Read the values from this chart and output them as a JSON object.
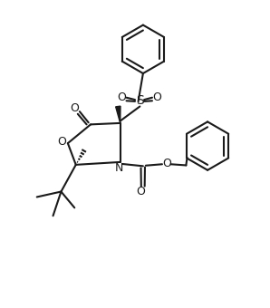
{
  "background": "#ffffff",
  "line_color": "#1a1a1a",
  "line_width": 1.5,
  "fig_width": 2.98,
  "fig_height": 3.4,
  "dpi": 100,
  "xlim": [
    0,
    10
  ],
  "ylim": [
    0,
    11.4
  ]
}
